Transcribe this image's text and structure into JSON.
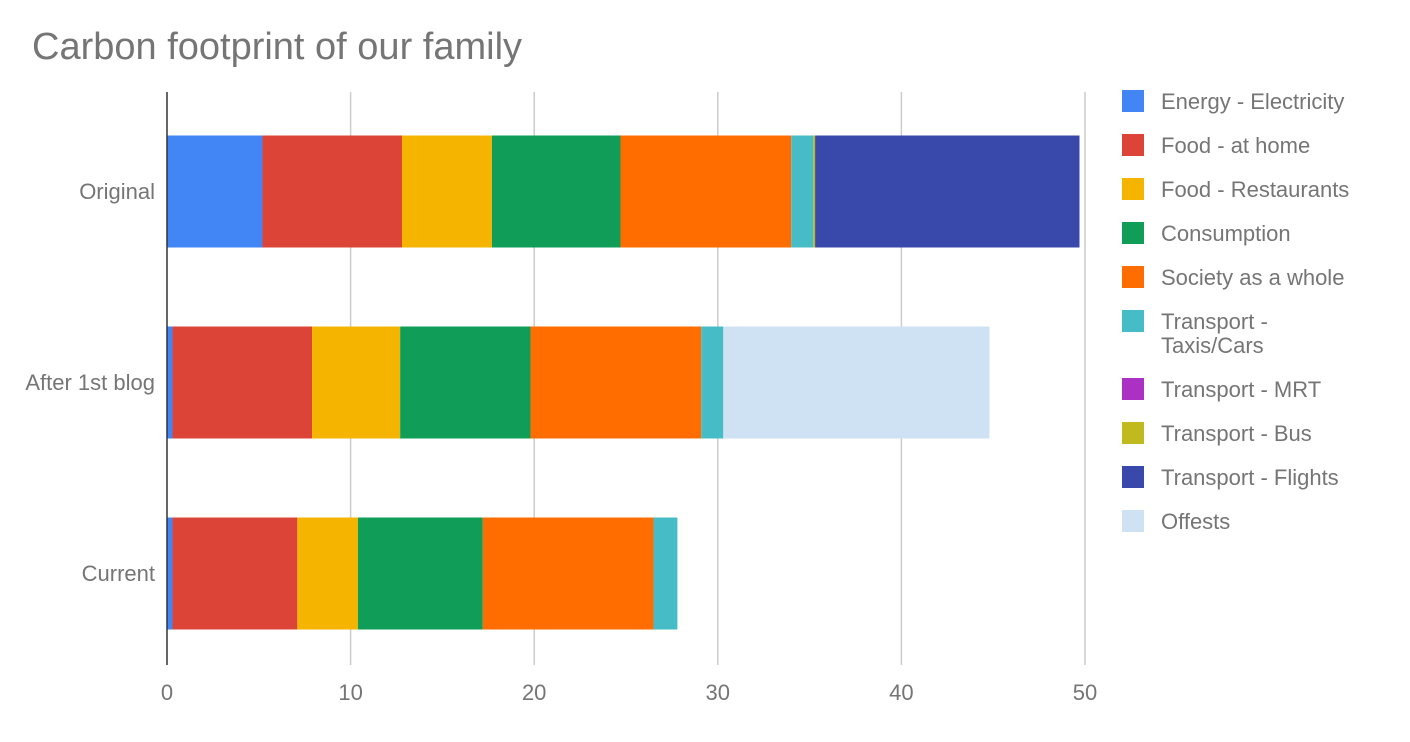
{
  "chart_data": {
    "type": "stacked-bar-horizontal",
    "title": "Carbon footprint of our family",
    "categories": [
      "Original",
      "After 1st blog",
      "Current"
    ],
    "series": [
      {
        "name": "Energy - Electricity",
        "color": "#4285f4",
        "values": [
          5.2,
          0.3,
          0.3
        ]
      },
      {
        "name": "Food - at home",
        "color": "#db4437",
        "values": [
          7.6,
          7.6,
          6.8
        ]
      },
      {
        "name": "Food - Restaurants",
        "color": "#f4b400",
        "values": [
          4.9,
          4.8,
          3.3
        ]
      },
      {
        "name": "Consumption",
        "color": "#0f9d58",
        "values": [
          7.0,
          7.1,
          6.8
        ]
      },
      {
        "name": "Society as a whole",
        "color": "#ff6d00",
        "values": [
          9.3,
          9.3,
          9.3
        ]
      },
      {
        "name": "Transport - Taxis/Cars",
        "color": "#46bdc6",
        "values": [
          1.2,
          1.2,
          1.3
        ]
      },
      {
        "name": "Transport - MRT",
        "color": "#ab30c4",
        "values": [
          0,
          0,
          0
        ]
      },
      {
        "name": "Transport - Bus",
        "color": "#c0ba1f",
        "values": [
          0.1,
          0,
          0
        ]
      },
      {
        "name": "Transport - Flights",
        "color": "#3949ab",
        "values": [
          14.4,
          0,
          0
        ]
      },
      {
        "name": "Offests",
        "color": "#cfe2f3",
        "values": [
          0,
          14.5,
          0
        ]
      }
    ],
    "xlim": [
      0,
      50
    ],
    "xticks": [
      0,
      10,
      20,
      30,
      40,
      50
    ],
    "grid": true
  }
}
